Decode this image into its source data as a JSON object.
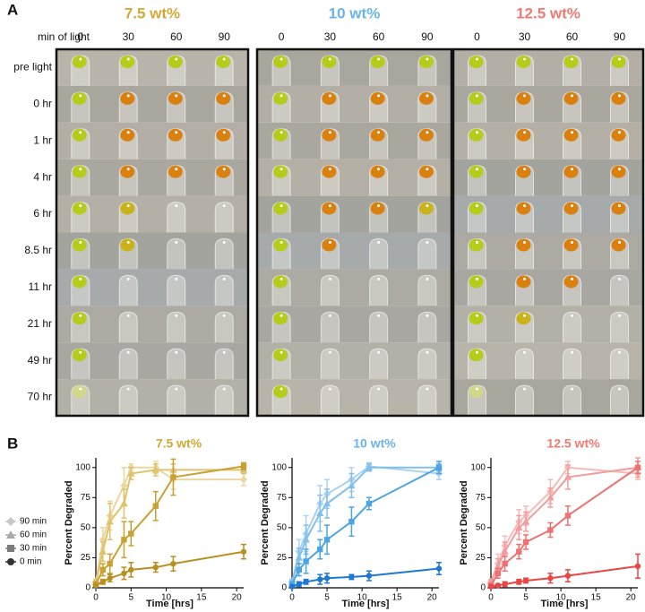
{
  "panel_a": {
    "label": "A",
    "row_header": "min of light",
    "groups": [
      {
        "title": "7.5 wt%",
        "color": "#d4a838",
        "columns": [
          "0",
          "30",
          "60",
          "90"
        ]
      },
      {
        "title": "10 wt%",
        "color": "#6ab4ec",
        "columns": [
          "0",
          "30",
          "60",
          "90"
        ]
      },
      {
        "title": "12.5 wt%",
        "color": "#f07a70",
        "columns": [
          "0",
          "30",
          "60",
          "90"
        ]
      }
    ],
    "rows": [
      "pre light",
      "0 hr",
      "1 hr",
      "4 hr",
      "6 hr",
      "8.5 hr",
      "11 hr",
      "21 hr",
      "49 hr",
      "70 hr"
    ]
  },
  "panel_b": {
    "label": "B",
    "legend_colors": [
      "#c8c8c8",
      "#a8a8a8",
      "#7a7a7a",
      "#333333"
    ]
  },
  "chart_data": [
    {
      "type": "line",
      "title": "7.5 wt%",
      "title_color": "#d4a838",
      "x_label": "Time [hrs]",
      "y_label": "Percent Degraded",
      "x": [
        0,
        1,
        2,
        4,
        5,
        8.5,
        11,
        21
      ],
      "xlim": [
        0,
        21
      ],
      "xticks": [
        0,
        5,
        10,
        15,
        20
      ],
      "ylim": [
        0,
        108
      ],
      "yticks": [
        0,
        25,
        50,
        75,
        100
      ],
      "series": [
        {
          "name": "90 min",
          "marker": "diamond",
          "color": "#e9d79e",
          "values": [
            5,
            40,
            60,
            85,
            100,
            100,
            90,
            90
          ],
          "errors": [
            2,
            10,
            12,
            15,
            3,
            5,
            8,
            5
          ]
        },
        {
          "name": "60 min",
          "marker": "triangle",
          "color": "#dec26c",
          "values": [
            5,
            30,
            55,
            70,
            95,
            98,
            98,
            98
          ],
          "errors": [
            2,
            8,
            15,
            12,
            5,
            5,
            5,
            3
          ]
        },
        {
          "name": "30 min",
          "marker": "square",
          "color": "#c9a032",
          "values": [
            3,
            15,
            20,
            40,
            45,
            68,
            92,
            101
          ],
          "errors": [
            2,
            5,
            8,
            15,
            10,
            12,
            15,
            3
          ]
        },
        {
          "name": "0 min",
          "marker": "circle",
          "color": "#b89020",
          "values": [
            2,
            5,
            8,
            12,
            15,
            17,
            20,
            30
          ],
          "errors": [
            1,
            2,
            3,
            5,
            6,
            4,
            6,
            6
          ]
        }
      ]
    },
    {
      "type": "line",
      "title": "10 wt%",
      "title_color": "#6ab4ec",
      "x_label": "Time [hrs]",
      "y_label": "Percent Degraded",
      "x": [
        0,
        1,
        2,
        4,
        5,
        8.5,
        11,
        21
      ],
      "xlim": [
        0,
        21
      ],
      "xticks": [
        0,
        5,
        10,
        15,
        20
      ],
      "ylim": [
        0,
        108
      ],
      "yticks": [
        0,
        25,
        50,
        75,
        100
      ],
      "series": [
        {
          "marker": "diamond",
          "color": "#aad2f2",
          "values": [
            5,
            30,
            45,
            70,
            78,
            90,
            101,
            95
          ],
          "errors": [
            2,
            10,
            15,
            15,
            12,
            10,
            3,
            5
          ]
        },
        {
          "marker": "triangle",
          "color": "#82bfec",
          "values": [
            5,
            25,
            40,
            62,
            70,
            85,
            100,
            100
          ],
          "errors": [
            2,
            8,
            12,
            15,
            12,
            10,
            3,
            3
          ]
        },
        {
          "marker": "square",
          "color": "#4ca4e4",
          "values": [
            3,
            15,
            22,
            32,
            40,
            55,
            70,
            100
          ],
          "errors": [
            2,
            5,
            10,
            8,
            12,
            12,
            5,
            5
          ]
        },
        {
          "marker": "circle",
          "color": "#1e78d2",
          "values": [
            1,
            3,
            5,
            7,
            8,
            9,
            10,
            16
          ],
          "errors": [
            1,
            2,
            2,
            4,
            4,
            2,
            4,
            5
          ]
        }
      ]
    },
    {
      "type": "line",
      "title": "12.5 wt%",
      "title_color": "#f07a70",
      "x_label": "Time [hrs]",
      "y_label": "Percent Degraded",
      "x": [
        0,
        1,
        2,
        4,
        5,
        8.5,
        11,
        21
      ],
      "xlim": [
        0,
        21
      ],
      "xticks": [
        0,
        5,
        10,
        15,
        20
      ],
      "ylim": [
        0,
        108
      ],
      "yticks": [
        0,
        25,
        50,
        75,
        100
      ],
      "series": [
        {
          "marker": "diamond",
          "color": "#f6baba",
          "values": [
            5,
            20,
            35,
            55,
            60,
            80,
            100,
            95
          ],
          "errors": [
            2,
            8,
            8,
            10,
            8,
            10,
            5,
            5
          ]
        },
        {
          "marker": "triangle",
          "color": "#f29c9c",
          "values": [
            5,
            18,
            30,
            50,
            55,
            75,
            92,
            100
          ],
          "errors": [
            2,
            6,
            8,
            10,
            8,
            8,
            10,
            8
          ]
        },
        {
          "marker": "square",
          "color": "#ee7272",
          "values": [
            2,
            12,
            20,
            30,
            38,
            48,
            60,
            100
          ],
          "errors": [
            2,
            4,
            6,
            6,
            6,
            6,
            8,
            5
          ]
        },
        {
          "marker": "circle",
          "color": "#e84545",
          "values": [
            1,
            2,
            3,
            5,
            6,
            8,
            10,
            18
          ],
          "errors": [
            1,
            1,
            2,
            2,
            2,
            4,
            5,
            10
          ]
        }
      ]
    }
  ]
}
